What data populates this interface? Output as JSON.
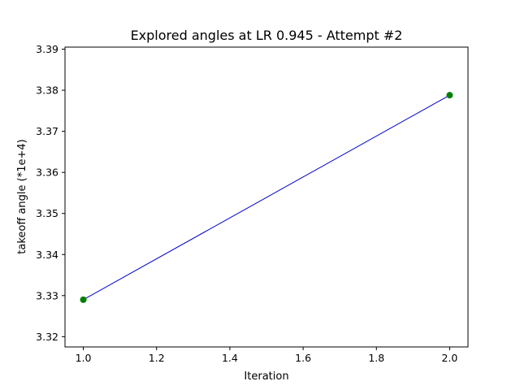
{
  "chart_data": {
    "type": "line",
    "title": "Explored angles at LR 0.945 - Attempt #2",
    "xlabel": "Iteration",
    "ylabel": "takeoff angle (*1e+4)",
    "xlim": [
      0.95,
      2.05
    ],
    "ylim": [
      3.3175,
      3.3905
    ],
    "x_ticks": [
      1.0,
      1.2,
      1.4,
      1.6,
      1.8,
      2.0
    ],
    "x_tick_labels": [
      "1.0",
      "1.2",
      "1.4",
      "1.6",
      "1.8",
      "2.0"
    ],
    "y_ticks": [
      3.32,
      3.33,
      3.34,
      3.35,
      3.36,
      3.37,
      3.38,
      3.39
    ],
    "y_tick_labels": [
      "3.32",
      "3.33",
      "3.34",
      "3.35",
      "3.36",
      "3.37",
      "3.38",
      "3.39"
    ],
    "grid": false,
    "series": [
      {
        "x": [
          1,
          2
        ],
        "y": [
          3.329,
          3.3788
        ],
        "line_color": "#0000cc",
        "marker_color": "#007f00"
      }
    ]
  }
}
